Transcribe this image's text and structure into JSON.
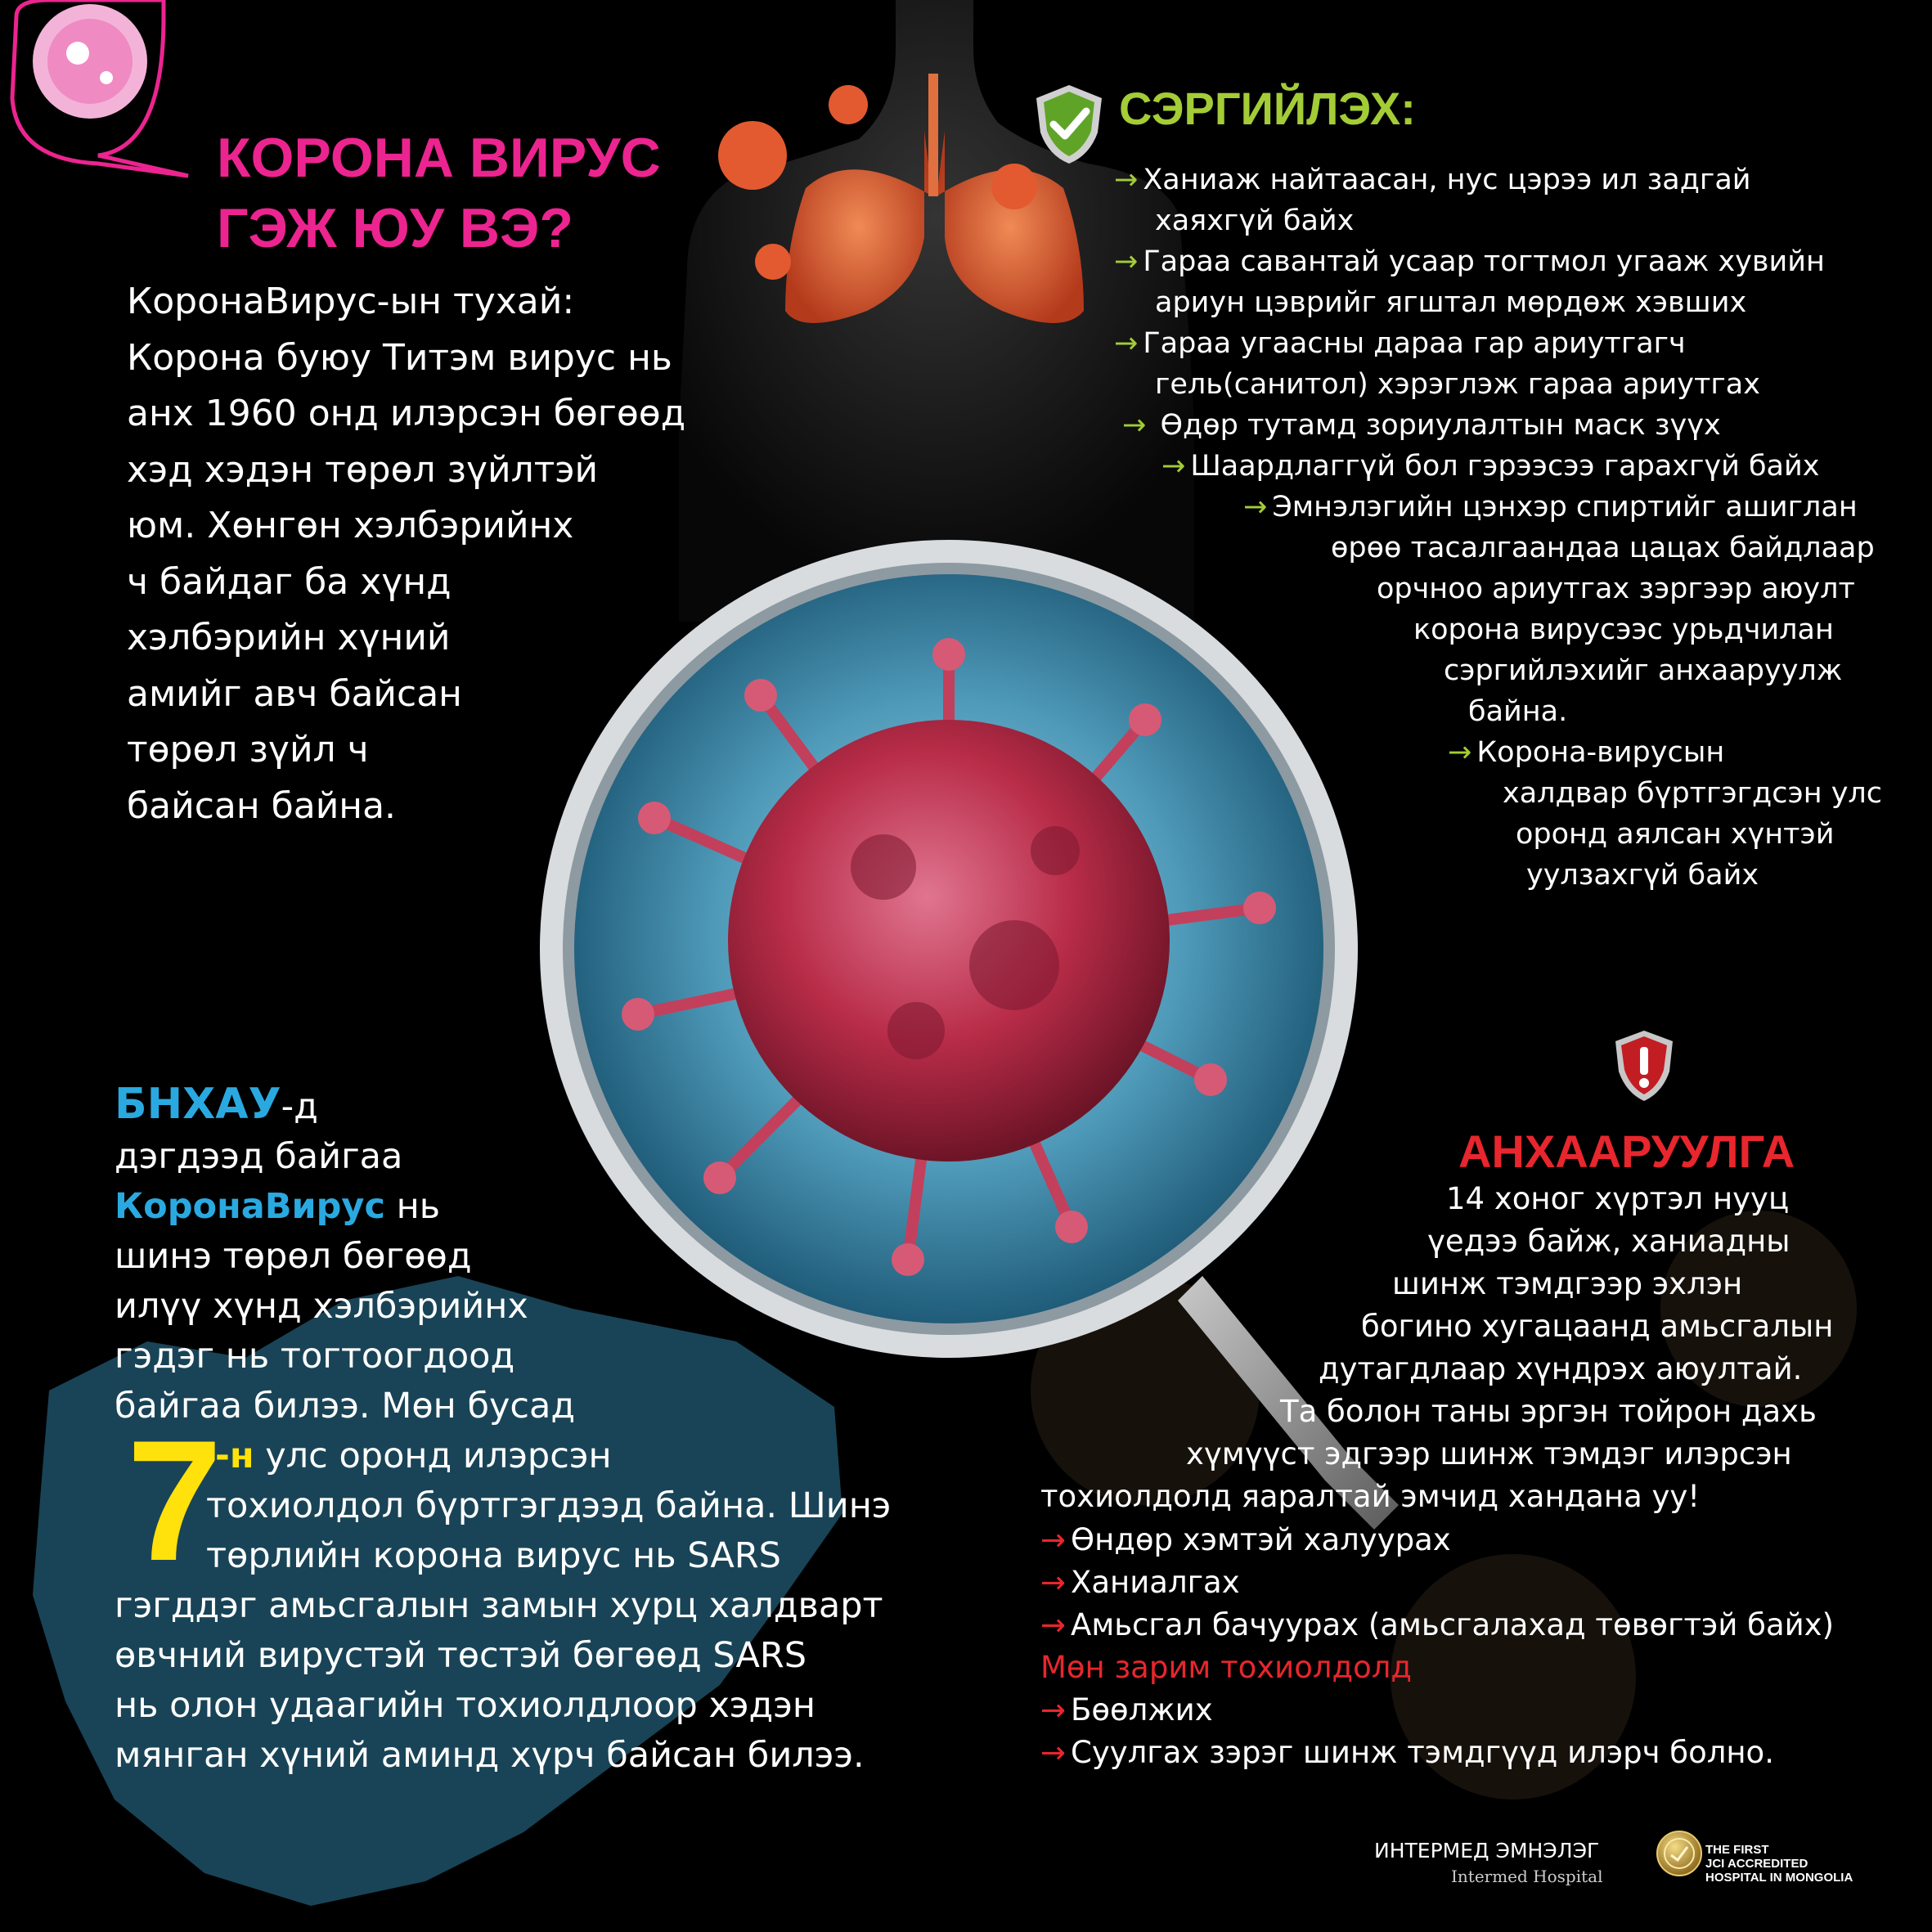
{
  "title": {
    "line1": "КОРОНА ВИРУС",
    "line2": "ГЭЖ ЮУ ВЭ?"
  },
  "intro": [
    "КоронаВирус-ын тухай:",
    "Корона буюу Титэм вирус нь",
    "анх 1960 онд илэрсэн бөгөөд",
    "хэд хэдэн төрөл зүйлтэй",
    "юм. Хөнгөн хэлбэрийнх",
    "ч байдаг ба хүнд",
    "хэлбэрийн хүний",
    "амийг авч байсан",
    "төрөл зүйл ч",
    "байсан байна."
  ],
  "prevention": {
    "title": "СЭРГИЙЛЭХ:",
    "arrow": "→",
    "lines": [
      {
        "text": "Ханиаж найтаасан, нус цэрээ ил задгай",
        "arrow": true
      },
      {
        "text": "хаяхгүй байх",
        "arrow": false
      },
      {
        "text": "Гараа савантай усаар тогтмол угааж хувийн",
        "arrow": true
      },
      {
        "text": "ариун цэврийг ягштал мөрдөж хэвших",
        "arrow": false
      },
      {
        "text": "Гараа угаасны дараа гар ариутгагч",
        "arrow": true
      },
      {
        "text": "гель(санитол) хэрэглэж гараа ариутгах",
        "arrow": false
      },
      {
        "text": " Өдөр тутамд зориулалтын маск зүүх",
        "arrow": true
      },
      {
        "text": "Шаардлаггүй бол гэрээсээ гарахгүй байх",
        "arrow": true
      },
      {
        "text": "Эмнэлэгийн цэнхэр спиртийг ашиглан",
        "arrow": true
      },
      {
        "text": "өрөө тасалгаандаа цацах байдлаар",
        "arrow": false
      },
      {
        "text": "орчноо ариутгах зэргээр аюулт",
        "arrow": false
      },
      {
        "text": "корона вирусээс урьдчилан",
        "arrow": false
      },
      {
        "text": "сэргийлэхийг анхааруулж",
        "arrow": false
      },
      {
        "text": "байна.",
        "arrow": false
      },
      {
        "text": "Корона-вирусын",
        "arrow": true
      },
      {
        "text": "халдвар бүртгэгдсэн улс",
        "arrow": false
      },
      {
        "text": "оронд аялсан хүнтэй",
        "arrow": false
      },
      {
        "text": "уулзахгүй байх",
        "arrow": false
      }
    ]
  },
  "china": {
    "bnhau": "БНХАУ",
    "suffix_d": "-д",
    "l2": "дэгдээд байгаа",
    "corona": "КоронаВирус",
    "l3_rest": " нь",
    "l4": "шинэ төрөл бөгөөд",
    "l5": "илүү хүнд хэлбэрийнх",
    "l6": "гэдэг нь тогтоогдоод",
    "l7": "байгаа билээ. Мөн бусад",
    "seven": "7",
    "suffix_n": "-н",
    "l8_rest": " улс оронд илэрсэн",
    "l9": "тохиолдол бүртгэгдээд байна. Шинэ",
    "l10": "төрлийн корона вирус нь SARS",
    "l11": "гэгддэг амьсгалын замын хурц халдварт",
    "l12": "өвчний вирустэй төстэй бөгөөд SARS",
    "l13": "нь олон удаагийн тохиолдлоор хэдэн",
    "l14": "мянган хүний аминд хүрч байсан билээ."
  },
  "warning": {
    "title": "АНХААРУУЛГА",
    "arrow": "→",
    "lines": [
      "14 хоног хүртэл нууц",
      "үедээ байж, ханиадны",
      "шинж тэмдгээр эхлэн",
      "богино хугацаанд амьсгалын",
      "дутагдлаар хүндрэх аюултай.",
      "Та болон таны эргэн тойрон дахь",
      "хүмүүст эдгээр шинж тэмдэг илэрсэн",
      "тохиолдолд яаралтай эмчид хандана уу!"
    ],
    "symptoms": [
      "Өндөр хэмтэй халуурах",
      "Ханиалгах",
      "Амьсгал бачуурах (амьсгалахад төвөгтэй байх)"
    ],
    "some_cases": "Мөн зарим тохиолдолд",
    "more_symptoms": [
      "Бөөлжих",
      "Суулгах зэрэг шинж тэмдгүүд илэрч болно."
    ]
  },
  "footer": {
    "hospital": "ИНТЕРМЕД ЭМНЭЛЭГ",
    "hospital_en": "Intermed Hospital",
    "badge": [
      "THE FIRST",
      "JCI ACCREDITED",
      "HOSPITAL IN MONGOLIA"
    ]
  },
  "colors": {
    "background": "#000000",
    "title_pink": "#ec2490",
    "prevention_green": "#a3cc37",
    "warning_red": "#e8262d",
    "highlight_blue": "#2aa9e0",
    "highlight_yellow": "#ffe20b",
    "virus_red": "#c7334e",
    "lens_blue": "#5fa8c6"
  },
  "icons": [
    "virus-speech-bubble-icon",
    "check-shield-icon",
    "exclamation-shield-icon",
    "magnifying-glass-icon",
    "jci-gold-seal-icon"
  ]
}
